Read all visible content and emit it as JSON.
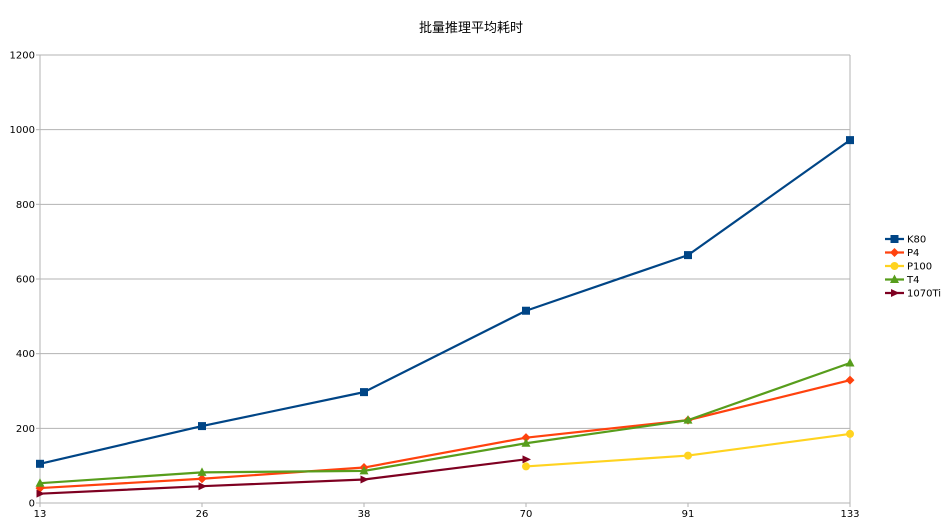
{
  "chart_data": {
    "type": "line",
    "title": "批量推理平均耗时",
    "xlabel": "",
    "ylabel": "",
    "categories": [
      "13",
      "26",
      "38",
      "70",
      "91",
      "133"
    ],
    "ylim": [
      0,
      1200
    ],
    "yticks": [
      0,
      200,
      400,
      600,
      800,
      1000,
      1200
    ],
    "grid": true,
    "legend_position": "right",
    "series": [
      {
        "name": "K80",
        "color": "#004586",
        "marker": "square",
        "values": [
          105,
          206,
          297,
          515,
          664,
          972
        ]
      },
      {
        "name": "P4",
        "color": "#ff420e",
        "marker": "diamond",
        "values": [
          40,
          65,
          95,
          175,
          222,
          329
        ]
      },
      {
        "name": "P100",
        "color": "#ffd320",
        "marker": "circle",
        "values": [
          null,
          null,
          null,
          98,
          127,
          185
        ]
      },
      {
        "name": "T4",
        "color": "#579d1c",
        "marker": "triangle",
        "values": [
          53,
          82,
          86,
          160,
          222,
          375
        ]
      },
      {
        "name": "1070Ti",
        "color": "#7e0021",
        "marker": "arrow",
        "values": [
          25,
          45,
          63,
          117,
          null,
          null
        ]
      }
    ]
  }
}
